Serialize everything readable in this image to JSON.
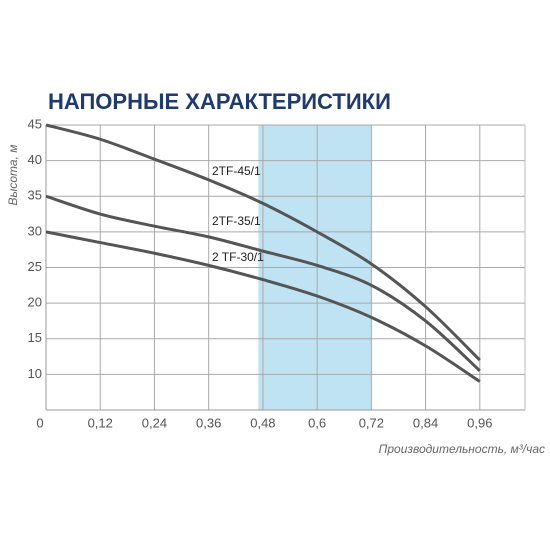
{
  "chart_data": {
    "type": "line",
    "title": "НАПОРНЫЕ ХАРАКТЕРИСТИКИ",
    "y_label": "Высота, м",
    "x_label": "Производительность, м³/час",
    "x": [
      0,
      0.12,
      0.24,
      0.36,
      0.48,
      0.6,
      0.72,
      0.84,
      0.96
    ],
    "series": [
      {
        "name": "2TF-45/1",
        "color": "#555555",
        "values": [
          45,
          43,
          40.2,
          37.3,
          34,
          30,
          25.5,
          19.5,
          12
        ]
      },
      {
        "name": "2TF-35/1",
        "color": "#555555",
        "values": [
          35,
          32.5,
          30.8,
          29.3,
          27.3,
          25.3,
          22.5,
          17.5,
          10.5
        ]
      },
      {
        "name": "2 TF-30/1",
        "color": "#555555",
        "values": [
          30,
          28.5,
          27,
          25.3,
          23.3,
          21,
          18,
          14,
          9
        ]
      }
    ],
    "xlim": [
      0,
      1.06
    ],
    "ylim": [
      5,
      45
    ],
    "xticks": [
      0,
      {
        "value": 0.12,
        "label": "0,12"
      },
      {
        "value": 0.24,
        "label": "0,24"
      },
      {
        "value": 0.36,
        "label": "0,36"
      },
      {
        "value": 0.48,
        "label": "0,48"
      },
      {
        "value": 0.6,
        "label": "0,6"
      },
      {
        "value": 0.72,
        "label": "0,72"
      },
      {
        "value": 0.84,
        "label": "0,84"
      },
      {
        "value": 0.96,
        "label": "0,96"
      }
    ],
    "yticks": [
      10,
      15,
      20,
      25,
      30,
      35,
      40,
      45
    ],
    "highlight_range": [
      0.47,
      0.72
    ],
    "highlight_color": "#bfe3f3",
    "grid": true
  }
}
